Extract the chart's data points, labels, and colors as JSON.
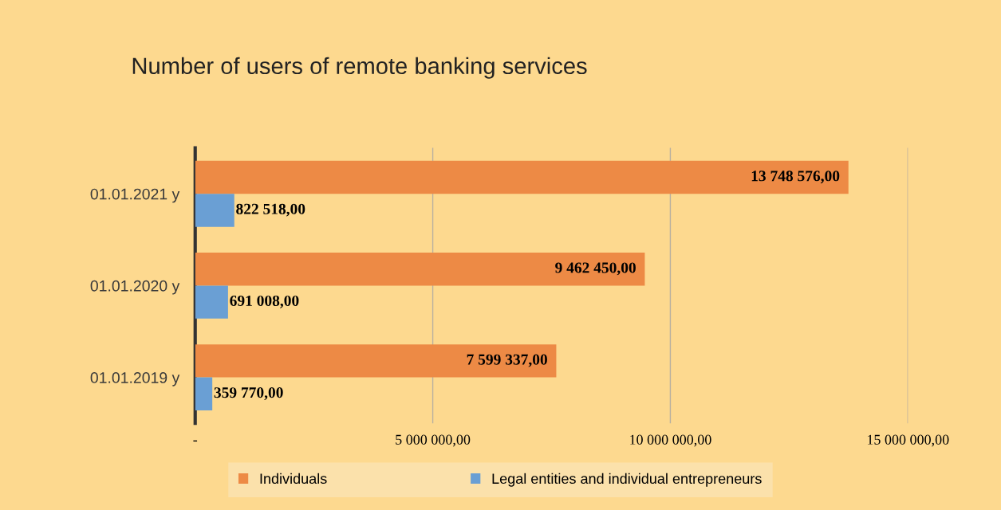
{
  "chart_data": {
    "type": "bar",
    "orientation": "horizontal",
    "title": "Number of users of remote banking services",
    "categories": [
      "01.01.2021 y",
      "01.01.2020 y",
      "01.01.2019 y"
    ],
    "series": [
      {
        "name": "Individuals",
        "color": "#ed8a45",
        "values": [
          13748576,
          9462450,
          7599337
        ],
        "value_labels": [
          "13 748 576,00",
          "9 462 450,00",
          "7 599 337,00"
        ]
      },
      {
        "name": "Legal entities and individual entrepreneurs",
        "color": "#6a9fd4",
        "values": [
          822518,
          691008,
          359770
        ],
        "value_labels": [
          "822 518,00",
          "691 008,00",
          "359 770,00"
        ]
      }
    ],
    "xlim": [
      0,
      15000000
    ],
    "xticks": [
      {
        "value": 0,
        "label": "-"
      },
      {
        "value": 5000000,
        "label": "5 000 000,00"
      },
      {
        "value": 10000000,
        "label": "10 000 000,00"
      },
      {
        "value": 15000000,
        "label": "15 000 000,00"
      }
    ],
    "grid": "x",
    "legend": "bottom"
  }
}
